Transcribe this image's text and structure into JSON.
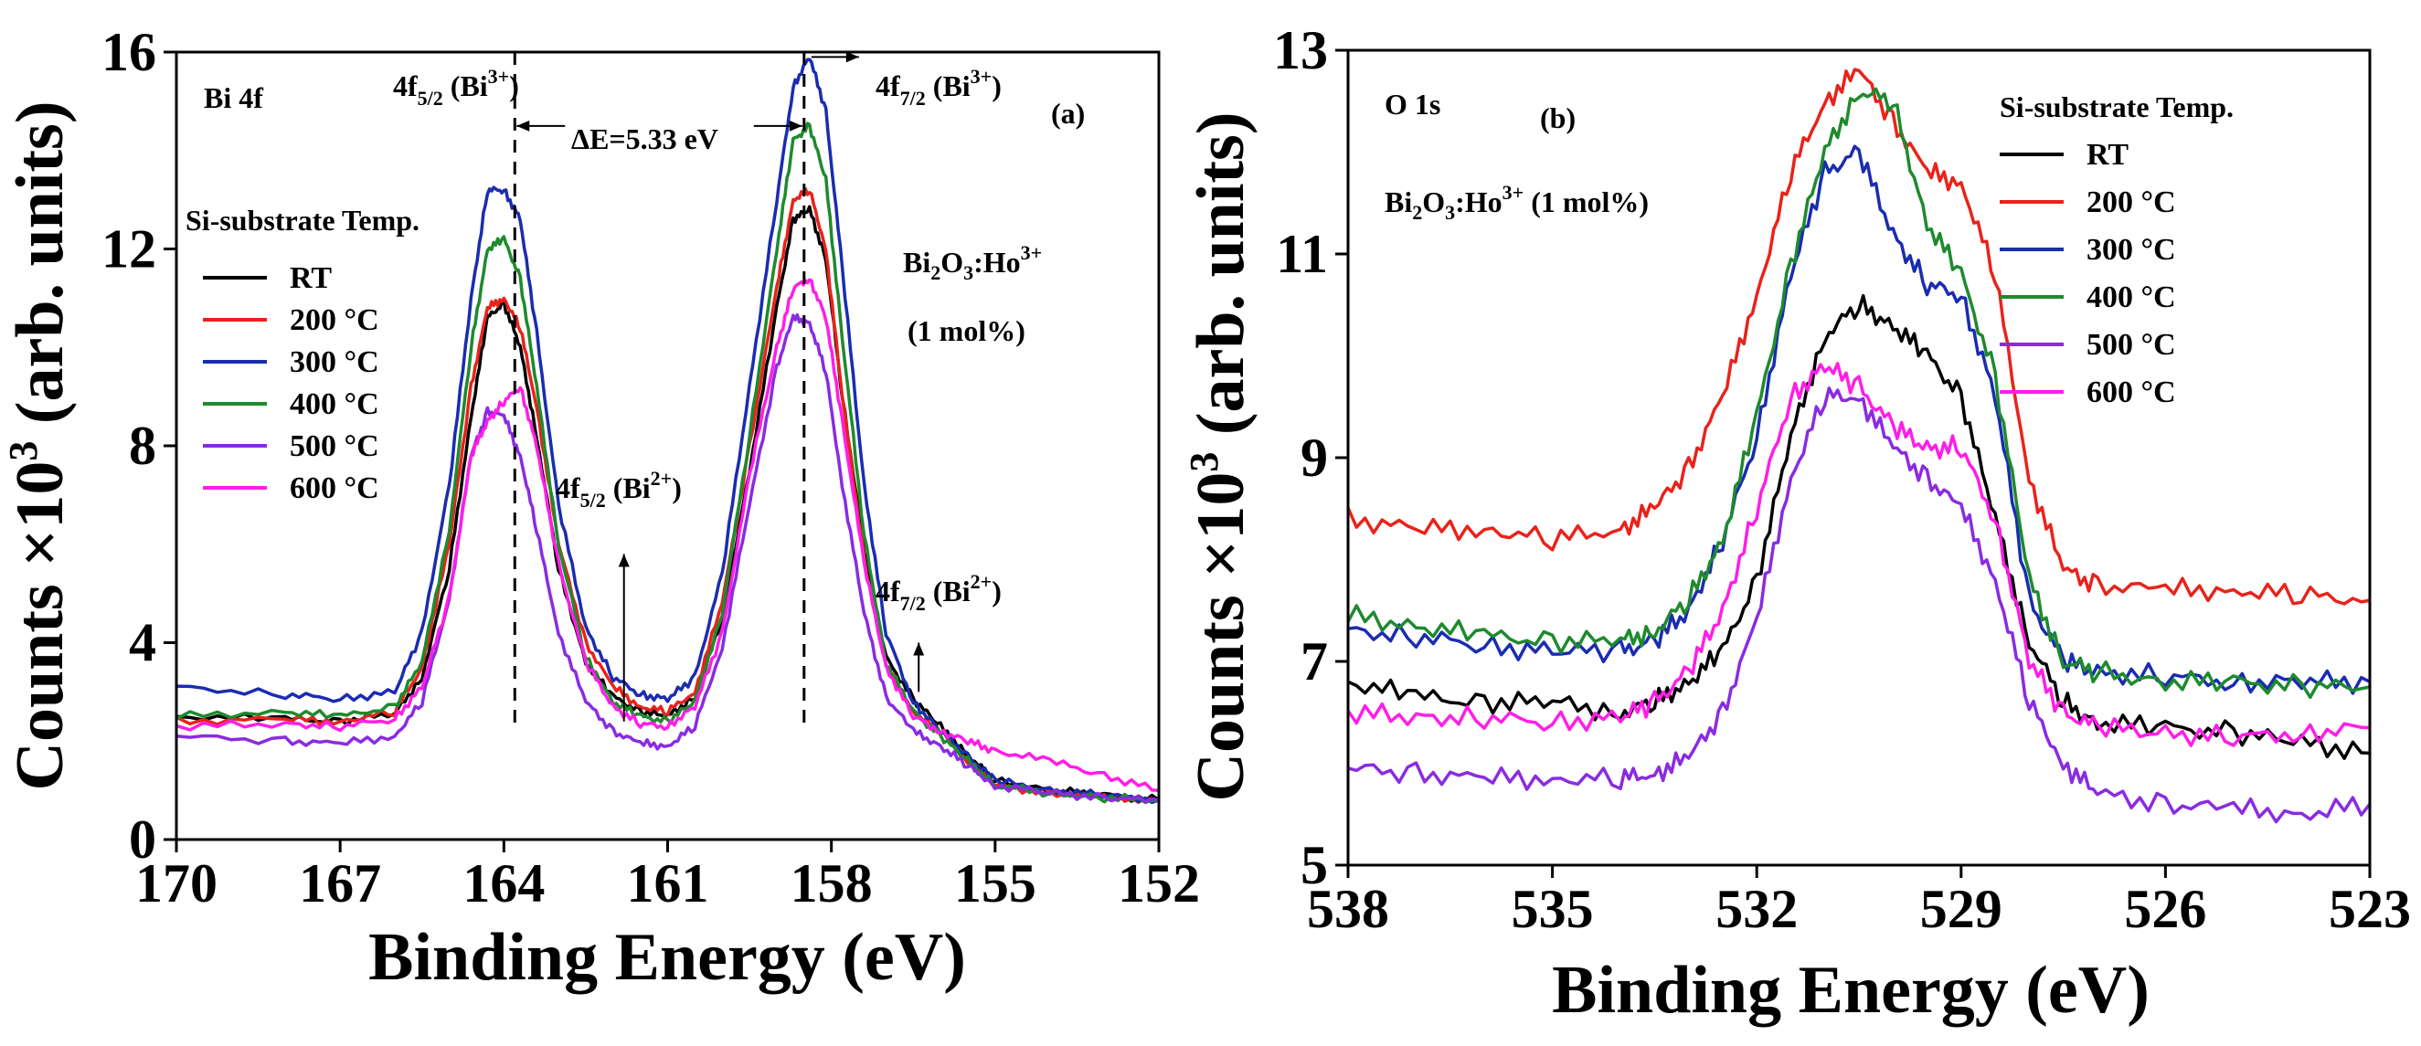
{
  "chart_data": [
    {
      "panel": "a",
      "type": "line",
      "panel_label": "(a)",
      "core_level": "Bi 4f",
      "xlabel": "Binding Energy (eV)",
      "ylabel": "Counts ×10",
      "ylabel_sup": "3",
      "ylabel_tail": " (arb. units)",
      "xlim": [
        170,
        152
      ],
      "ylim": [
        0,
        16
      ],
      "xticks": [
        "170",
        "167",
        "164",
        "161",
        "158",
        "155",
        "152"
      ],
      "xtick_values": [
        170,
        167,
        164,
        161,
        158,
        155,
        152
      ],
      "yticks": [
        "0",
        "4",
        "8",
        "12",
        "16"
      ],
      "ytick_values": [
        0,
        4,
        8,
        12,
        16
      ],
      "legend_title": "Si-substrate Temp.",
      "sample": {
        "base": "Bi",
        "sub1": "2",
        "mid": "O",
        "sub2": "3",
        "tail": ":Ho",
        "sup": "3+",
        "line2": "(1 mol%)"
      },
      "annotations": {
        "delta_e": "ΔE=5.33 eV",
        "peak_labels": [
          {
            "base": "4f",
            "sub": "5/2",
            "open": " (Bi",
            "sup": "3+",
            "close": ")"
          },
          {
            "base": "4f",
            "sub": "7/2",
            "open": " (Bi",
            "sup": "3+",
            "close": ")"
          },
          {
            "base": "4f",
            "sub": "5/2",
            "open": " (Bi",
            "sup": "2+",
            "close": ")"
          },
          {
            "base": "4f",
            "sub": "7/2",
            "open": " (Bi",
            "sup": "2+",
            "close": ")"
          }
        ],
        "peak_lines_eV": [
          163.8,
          158.5
        ],
        "bi2_arrows_eV": [
          {
            "x": 161.8,
            "from": 2.4,
            "to": 5.8
          },
          {
            "x": 156.4,
            "from": 3.0,
            "to": 4.0
          }
        ]
      },
      "x": [
        170,
        168,
        167,
        166,
        165.5,
        165,
        164.6,
        164.3,
        164,
        163.7,
        163.4,
        163,
        162.5,
        162,
        161.5,
        161,
        160.5,
        160,
        159.5,
        159,
        158.7,
        158.4,
        158.1,
        157.8,
        157.4,
        157,
        156.5,
        156,
        155.5,
        155,
        154,
        153,
        152
      ],
      "series": [
        {
          "name": "RT",
          "color": "#000000",
          "values": [
            2.5,
            2.45,
            2.4,
            2.55,
            3.3,
            5.5,
            8.6,
            10.6,
            10.9,
            10.0,
            8.2,
            5.5,
            3.6,
            2.9,
            2.6,
            2.5,
            2.9,
            4.5,
            7.5,
            10.8,
            12.6,
            12.8,
            11.8,
            9.0,
            5.9,
            3.7,
            2.85,
            2.3,
            1.7,
            1.2,
            1.0,
            0.9,
            0.8
          ]
        },
        {
          "name": "200 °C",
          "color": "#e8231b",
          "values": [
            2.4,
            2.45,
            2.4,
            2.6,
            3.5,
            6.0,
            9.2,
            10.8,
            11.0,
            10.4,
            8.8,
            6.0,
            4.0,
            3.1,
            2.7,
            2.6,
            3.0,
            4.8,
            8.0,
            11.2,
            13.0,
            13.2,
            12.0,
            9.0,
            5.7,
            3.5,
            2.6,
            2.2,
            1.6,
            1.1,
            0.95,
            0.85,
            0.8
          ]
        },
        {
          "name": "300 °C",
          "color": "#1a2cb0",
          "values": [
            3.1,
            2.95,
            2.85,
            3.0,
            4.2,
            7.2,
            11.0,
            13.2,
            13.2,
            12.6,
            10.3,
            6.8,
            4.3,
            3.3,
            2.95,
            2.85,
            3.3,
            5.4,
            9.2,
            13.0,
            15.3,
            15.9,
            14.8,
            11.6,
            7.2,
            4.2,
            2.8,
            2.2,
            1.7,
            1.2,
            1.0,
            0.9,
            0.8
          ]
        },
        {
          "name": "400 °C",
          "color": "#1e8a2e",
          "values": [
            2.5,
            2.6,
            2.5,
            2.7,
            3.6,
            6.3,
            10.0,
            12.0,
            12.2,
            11.4,
            9.2,
            6.0,
            3.7,
            2.8,
            2.5,
            2.4,
            2.8,
            4.6,
            8.2,
            12.0,
            14.2,
            14.5,
            13.4,
            10.2,
            6.2,
            3.6,
            2.6,
            2.1,
            1.6,
            1.1,
            0.95,
            0.85,
            0.8
          ]
        },
        {
          "name": "500 °C",
          "color": "#8a2be2",
          "values": [
            2.1,
            2.0,
            1.95,
            2.1,
            2.8,
            4.9,
            7.8,
            8.7,
            8.6,
            7.8,
            6.3,
            4.2,
            2.8,
            2.2,
            1.95,
            1.9,
            2.3,
            3.9,
            6.8,
            9.6,
            10.6,
            10.5,
            9.5,
            7.2,
            4.6,
            2.9,
            2.2,
            1.9,
            1.5,
            1.1,
            0.95,
            0.85,
            0.8
          ]
        },
        {
          "name": "600 °C",
          "color": "#ff1ee6",
          "values": [
            2.3,
            2.35,
            2.3,
            2.45,
            3.1,
            4.9,
            7.8,
            8.5,
            8.9,
            9.2,
            8.0,
            5.6,
            3.6,
            2.7,
            2.35,
            2.3,
            2.7,
            4.2,
            7.4,
            10.0,
            11.2,
            11.4,
            10.6,
            8.5,
            5.6,
            3.5,
            2.5,
            2.2,
            2.0,
            1.8,
            1.6,
            1.3,
            1.0
          ]
        }
      ]
    },
    {
      "panel": "b",
      "type": "line",
      "panel_label": "(b)",
      "core_level": "O 1s",
      "xlabel": "Binding Energy (eV)",
      "ylabel": "Counts ×10",
      "ylabel_sup": "3",
      "ylabel_tail": " (arb. units)",
      "xlim": [
        538,
        523
      ],
      "ylim": [
        5,
        13
      ],
      "xticks": [
        "538",
        "535",
        "532",
        "529",
        "526",
        "523"
      ],
      "xtick_values": [
        538,
        535,
        532,
        529,
        526,
        523
      ],
      "yticks": [
        "5",
        "7",
        "9",
        "11",
        "13"
      ],
      "ytick_values": [
        5,
        7,
        9,
        11,
        13
      ],
      "legend_title": "Si-substrate Temp.",
      "sample": {
        "base": "Bi",
        "sub1": "2",
        "mid": "O",
        "sub2": "3",
        "tail": ":Ho",
        "sup": "3+",
        "line2": " (1 mol%)"
      },
      "x": [
        538,
        537,
        536,
        535,
        534,
        533.5,
        533,
        532.5,
        532,
        531.5,
        531,
        530.5,
        530,
        529.5,
        529,
        528.5,
        528,
        527.5,
        527,
        526,
        525,
        524,
        523
      ],
      "series": [
        {
          "name": "RT",
          "color": "#000000",
          "values": [
            6.8,
            6.65,
            6.6,
            6.6,
            6.5,
            6.6,
            6.8,
            7.1,
            7.8,
            9.2,
            10.2,
            10.5,
            10.3,
            10.0,
            9.6,
            8.4,
            7.2,
            6.6,
            6.4,
            6.35,
            6.3,
            6.2,
            6.1
          ]
        },
        {
          "name": "200 °C",
          "color": "#e8231b",
          "values": [
            8.4,
            8.3,
            8.3,
            8.2,
            8.3,
            8.5,
            8.9,
            9.6,
            10.6,
            11.8,
            12.5,
            12.8,
            12.3,
            11.8,
            11.7,
            10.8,
            8.8,
            7.9,
            7.75,
            7.7,
            7.7,
            7.65,
            7.6
          ]
        },
        {
          "name": "300 °C",
          "color": "#1a2cb0",
          "values": [
            7.3,
            7.25,
            7.15,
            7.1,
            7.1,
            7.2,
            7.5,
            8.2,
            9.2,
            10.8,
            11.8,
            12.0,
            11.2,
            10.7,
            10.6,
            9.6,
            7.6,
            7.0,
            6.9,
            6.85,
            6.8,
            6.8,
            6.8
          ]
        },
        {
          "name": "400 °C",
          "color": "#1e8a2e",
          "values": [
            7.45,
            7.35,
            7.25,
            7.2,
            7.2,
            7.3,
            7.6,
            8.2,
            9.4,
            10.9,
            12.0,
            12.6,
            12.5,
            11.3,
            10.8,
            9.8,
            7.8,
            7.0,
            6.9,
            6.8,
            6.8,
            6.75,
            6.75
          ]
        },
        {
          "name": "500 °C",
          "color": "#8a2be2",
          "values": [
            5.95,
            5.9,
            5.85,
            5.85,
            5.85,
            5.9,
            6.05,
            6.5,
            7.4,
            8.8,
            9.6,
            9.6,
            9.1,
            8.8,
            8.5,
            7.8,
            6.6,
            6.0,
            5.7,
            5.6,
            5.55,
            5.5,
            5.6
          ]
        },
        {
          "name": "600 °C",
          "color": "#ff1ee6",
          "values": [
            6.5,
            6.45,
            6.45,
            6.4,
            6.45,
            6.6,
            6.9,
            7.5,
            8.5,
            9.6,
            9.9,
            9.7,
            9.3,
            9.1,
            9.1,
            8.4,
            7.0,
            6.5,
            6.35,
            6.3,
            6.25,
            6.3,
            6.35
          ]
        }
      ]
    }
  ]
}
